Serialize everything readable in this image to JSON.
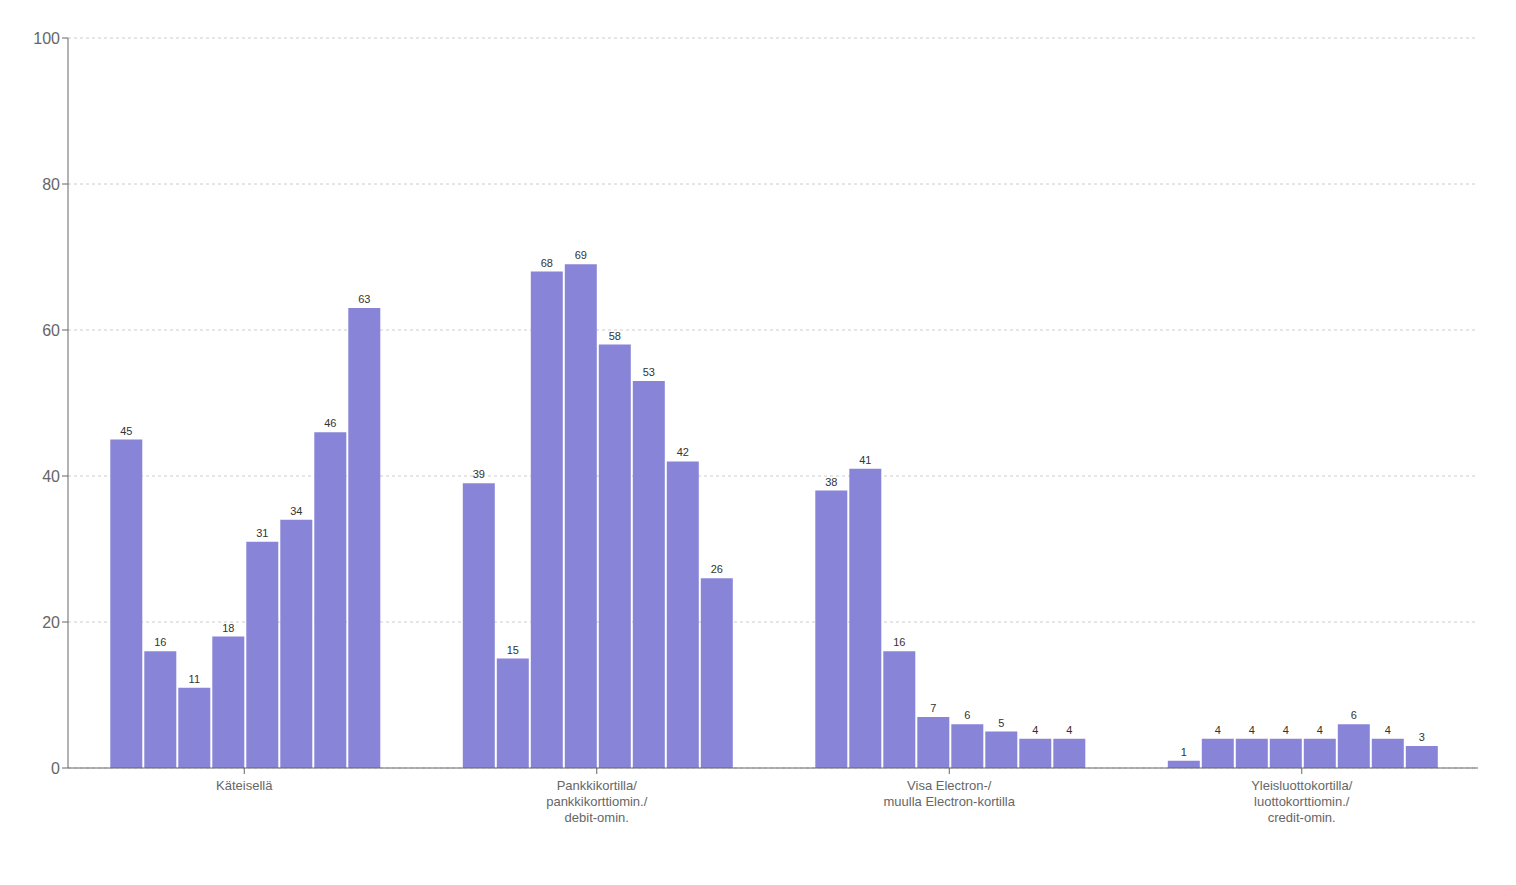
{
  "chart_data": {
    "type": "bar",
    "categories": [
      "Käteisellä",
      "Pankkikortilla/\npankkikorttiomin./\ndebit-omin.",
      "Visa Electron-/\nmuulla Electron-kortilla",
      "Yleisluottokortilla/\nluottokorttiomin./\ncredit-omin."
    ],
    "series": [
      {
        "values": [
          45,
          39,
          38,
          1
        ]
      },
      {
        "values": [
          16,
          15,
          41,
          4
        ]
      },
      {
        "values": [
          11,
          68,
          16,
          4
        ]
      },
      {
        "values": [
          18,
          69,
          7,
          4
        ]
      },
      {
        "values": [
          31,
          58,
          6,
          4
        ]
      },
      {
        "values": [
          34,
          53,
          5,
          6
        ]
      },
      {
        "values": [
          46,
          42,
          4,
          4
        ]
      },
      {
        "values": [
          63,
          26,
          4,
          3
        ]
      }
    ],
    "color": "#8884d8",
    "ylim": [
      0,
      100
    ],
    "yticks": [
      0,
      20,
      40,
      60,
      80,
      100
    ],
    "grid": true,
    "data_labels": true
  }
}
